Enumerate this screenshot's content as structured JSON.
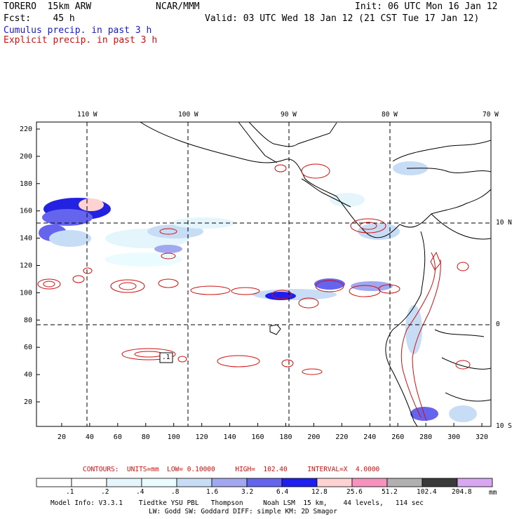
{
  "header": {
    "line1_left": "TORERO  15km ARW",
    "line1_center": "NCAR/MMM",
    "line1_right": "Init: 06 UTC Mon 16 Jan 12",
    "line2_left": "Fcst:    45 h",
    "line2_right": "Valid: 03 UTC Wed 18 Jan 12 (21 CST Tue 17 Jan 12)",
    "cumulus_label": "Cumulus precip. in past 3 h",
    "explicit_label": "Explicit precip. in past 3 h"
  },
  "map": {
    "top_lon_labels": [
      "110 W",
      "100 W",
      "90 W",
      "80 W",
      "70 W"
    ],
    "right_lat_labels": [
      "10 N",
      "0",
      "10 S"
    ],
    "y_ticks": [
      "20",
      "40",
      "60",
      "80",
      "100",
      "120",
      "140",
      "160",
      "180",
      "200",
      "220"
    ],
    "x_ticks": [
      "20",
      "40",
      "60",
      "80",
      "100",
      "120",
      "140",
      "160",
      "180",
      "200",
      "220",
      "240",
      "260",
      "280",
      "300",
      "320"
    ],
    "contour_annotation": ".1"
  },
  "contours": {
    "units_label": "CONTOURS:  UNITS=mm  LOW= 0.10000",
    "high_label": "HIGH=  102.40",
    "interval_label": "INTERVAL=X  4.0000"
  },
  "legend": {
    "labels": [
      ".1",
      ".2",
      ".4",
      ".8",
      "1.6",
      "3.2",
      "6.4",
      "12.8",
      "25.6",
      "51.2",
      "102.4",
      "204.8"
    ],
    "unit": "mm",
    "colors": [
      "#ffffff",
      "#ffffff",
      "#e4f6fb",
      "#eafcff",
      "#c7dcf5",
      "#a2a8f0",
      "#6464ee",
      "#1e1ef0",
      "#ffd2d2",
      "#f592bd",
      "#b0b0b0",
      "#3a3a3a",
      "#d9a6f2"
    ]
  },
  "footer": {
    "line1": "Model Info: V3.3.1    Tiedtke YSU PBL   Thompson     Noah LSM  15 km,    44 levels,   114 sec",
    "line2": "LW: Godd SW: Goddard DIFF: simple KM: 2D Smagor"
  }
}
